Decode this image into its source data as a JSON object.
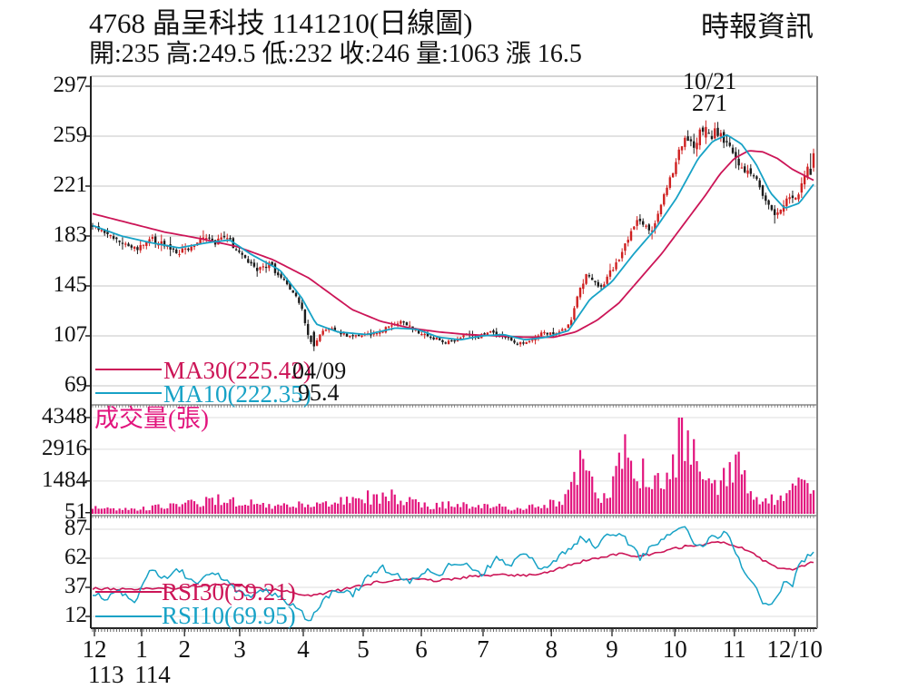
{
  "header": {
    "title": "4768  晶呈科技 1141210(日線圖)",
    "provider": "時報資訊",
    "quote_line": "開:235 高:249.5 低:232 收:246 量:1063 漲 16.5",
    "quote": {
      "open": 235,
      "high": 249.5,
      "low": 232,
      "close": 246,
      "volume": 1063,
      "change": 16.5
    }
  },
  "colors": {
    "up_candle": "#cf2020",
    "down_candle": "#1c1c1c",
    "ma30": "#cc1557",
    "ma10": "#17a2c6",
    "volume_bar": "#e2147d",
    "rsi30": "#cc1557",
    "rsi10": "#17a2c6",
    "grid": "#c6c6c6",
    "grid_faint": "#dedede",
    "frame": "#8a8a8a",
    "axis": "#222222",
    "text": "#111111"
  },
  "chart_data": {
    "type": "candlestick",
    "title": "4768 晶呈科技 1141210(日線圖)",
    "x_axis": {
      "num_days": 242,
      "months": [
        {
          "label": "12",
          "t": 0.005
        },
        {
          "label": "1",
          "t": 0.07
        },
        {
          "label": "2",
          "t": 0.129
        },
        {
          "label": "3",
          "t": 0.205
        },
        {
          "label": "4",
          "t": 0.2925
        },
        {
          "label": "5",
          "t": 0.375
        },
        {
          "label": "6",
          "t": 0.455
        },
        {
          "label": "7",
          "t": 0.54
        },
        {
          "label": "8",
          "t": 0.634
        },
        {
          "label": "9",
          "t": 0.7175
        },
        {
          "label": "10",
          "t": 0.804
        },
        {
          "label": "11",
          "t": 0.886
        },
        {
          "label": "12/10",
          "t": 0.969
        }
      ],
      "years": [
        {
          "label": "113",
          "t": 0.021
        },
        {
          "label": "114",
          "t": 0.085
        }
      ]
    },
    "price_panel": {
      "y_ticks": [
        297,
        259,
        221,
        183,
        145,
        107,
        69
      ],
      "legend": [
        {
          "display": "MA30(225.42)",
          "name": "MA30",
          "value": 225.42,
          "color_key": "ma30"
        },
        {
          "display": "MA10(222.35)",
          "name": "MA10",
          "value": 222.35,
          "color_key": "ma10"
        }
      ],
      "annotations": {
        "peak": {
          "date": "10/21",
          "price_display": "271",
          "price": 271,
          "t": 0.85
        },
        "low": {
          "date": "04/09",
          "price_display": "95.4",
          "price": 95.4,
          "t": 0.306
        }
      },
      "close_waypoints": [
        [
          0,
          190
        ],
        [
          0.02,
          185
        ],
        [
          0.04,
          178
        ],
        [
          0.06,
          173
        ],
        [
          0.08,
          181
        ],
        [
          0.1,
          176
        ],
        [
          0.12,
          171
        ],
        [
          0.14,
          176
        ],
        [
          0.155,
          181
        ],
        [
          0.17,
          178
        ],
        [
          0.185,
          183
        ],
        [
          0.2,
          172
        ],
        [
          0.215,
          165
        ],
        [
          0.23,
          157
        ],
        [
          0.245,
          162
        ],
        [
          0.26,
          152
        ],
        [
          0.275,
          143
        ],
        [
          0.29,
          128
        ],
        [
          0.3,
          106
        ],
        [
          0.306,
          99
        ],
        [
          0.315,
          109
        ],
        [
          0.33,
          113
        ],
        [
          0.345,
          109
        ],
        [
          0.36,
          106
        ],
        [
          0.375,
          109
        ],
        [
          0.39,
          108
        ],
        [
          0.405,
          112
        ],
        [
          0.42,
          117
        ],
        [
          0.43,
          119
        ],
        [
          0.445,
          112
        ],
        [
          0.46,
          108
        ],
        [
          0.475,
          105
        ],
        [
          0.49,
          102
        ],
        [
          0.505,
          104
        ],
        [
          0.52,
          109
        ],
        [
          0.535,
          106
        ],
        [
          0.55,
          110
        ],
        [
          0.565,
          108
        ],
        [
          0.58,
          103
        ],
        [
          0.595,
          101
        ],
        [
          0.61,
          105
        ],
        [
          0.625,
          109
        ],
        [
          0.64,
          108
        ],
        [
          0.655,
          113
        ],
        [
          0.665,
          121
        ],
        [
          0.675,
          141
        ],
        [
          0.685,
          153
        ],
        [
          0.695,
          147
        ],
        [
          0.705,
          143
        ],
        [
          0.715,
          153
        ],
        [
          0.725,
          161
        ],
        [
          0.735,
          172
        ],
        [
          0.745,
          183
        ],
        [
          0.755,
          197
        ],
        [
          0.765,
          191
        ],
        [
          0.775,
          186
        ],
        [
          0.785,
          201
        ],
        [
          0.795,
          216
        ],
        [
          0.805,
          233
        ],
        [
          0.815,
          249
        ],
        [
          0.825,
          259
        ],
        [
          0.835,
          252
        ],
        [
          0.845,
          265
        ],
        [
          0.855,
          258
        ],
        [
          0.865,
          263
        ],
        [
          0.875,
          256
        ],
        [
          0.885,
          249
        ],
        [
          0.895,
          241
        ],
        [
          0.905,
          229
        ],
        [
          0.915,
          233
        ],
        [
          0.925,
          221
        ],
        [
          0.935,
          207
        ],
        [
          0.945,
          198
        ],
        [
          0.955,
          206
        ],
        [
          0.965,
          213
        ],
        [
          0.975,
          210
        ],
        [
          0.985,
          225
        ],
        [
          0.995,
          240
        ],
        [
          1,
          246
        ]
      ],
      "ma30_waypoints": [
        [
          0,
          200
        ],
        [
          0.05,
          193
        ],
        [
          0.1,
          186
        ],
        [
          0.15,
          181
        ],
        [
          0.2,
          175
        ],
        [
          0.25,
          165
        ],
        [
          0.3,
          151
        ],
        [
          0.33,
          139
        ],
        [
          0.36,
          127
        ],
        [
          0.4,
          118
        ],
        [
          0.44,
          113
        ],
        [
          0.48,
          110
        ],
        [
          0.52,
          108
        ],
        [
          0.56,
          107
        ],
        [
          0.6,
          106
        ],
        [
          0.64,
          106
        ],
        [
          0.67,
          110
        ],
        [
          0.7,
          119
        ],
        [
          0.73,
          132
        ],
        [
          0.76,
          151
        ],
        [
          0.79,
          170
        ],
        [
          0.82,
          192
        ],
        [
          0.85,
          214
        ],
        [
          0.87,
          230
        ],
        [
          0.89,
          242
        ],
        [
          0.91,
          248
        ],
        [
          0.93,
          247
        ],
        [
          0.95,
          242
        ],
        [
          0.97,
          234
        ],
        [
          1,
          225.42
        ]
      ],
      "ma10_waypoints": [
        [
          0,
          191
        ],
        [
          0.04,
          183
        ],
        [
          0.08,
          178
        ],
        [
          0.12,
          174
        ],
        [
          0.16,
          178
        ],
        [
          0.19,
          180
        ],
        [
          0.22,
          169
        ],
        [
          0.26,
          157
        ],
        [
          0.29,
          136
        ],
        [
          0.31,
          116
        ],
        [
          0.34,
          110
        ],
        [
          0.38,
          108
        ],
        [
          0.42,
          113
        ],
        [
          0.45,
          112
        ],
        [
          0.48,
          106
        ],
        [
          0.51,
          104
        ],
        [
          0.54,
          107
        ],
        [
          0.57,
          108
        ],
        [
          0.6,
          104
        ],
        [
          0.63,
          106
        ],
        [
          0.66,
          111
        ],
        [
          0.69,
          135
        ],
        [
          0.72,
          148
        ],
        [
          0.75,
          169
        ],
        [
          0.78,
          188
        ],
        [
          0.81,
          212
        ],
        [
          0.84,
          242
        ],
        [
          0.86,
          255
        ],
        [
          0.88,
          260
        ],
        [
          0.9,
          253
        ],
        [
          0.92,
          238
        ],
        [
          0.94,
          216
        ],
        [
          0.96,
          204
        ],
        [
          0.98,
          208
        ],
        [
          1,
          222.35
        ]
      ]
    },
    "volume_panel": {
      "label": "成交量(張)",
      "y_ticks": [
        4348,
        2916,
        1484,
        51
      ],
      "max": 4348,
      "last": 1063,
      "spike": {
        "t": 0.815,
        "value": 4348
      },
      "waypoints": [
        [
          0,
          260
        ],
        [
          0.03,
          180
        ],
        [
          0.06,
          220
        ],
        [
          0.09,
          300
        ],
        [
          0.12,
          380
        ],
        [
          0.15,
          560
        ],
        [
          0.17,
          680
        ],
        [
          0.19,
          520
        ],
        [
          0.21,
          620
        ],
        [
          0.24,
          330
        ],
        [
          0.27,
          360
        ],
        [
          0.3,
          420
        ],
        [
          0.33,
          480
        ],
        [
          0.36,
          620
        ],
        [
          0.39,
          780
        ],
        [
          0.42,
          820
        ],
        [
          0.44,
          520
        ],
        [
          0.47,
          360
        ],
        [
          0.5,
          420
        ],
        [
          0.53,
          310
        ],
        [
          0.56,
          340
        ],
        [
          0.58,
          240
        ],
        [
          0.6,
          300
        ],
        [
          0.62,
          340
        ],
        [
          0.64,
          480
        ],
        [
          0.66,
          780
        ],
        [
          0.675,
          2300
        ],
        [
          0.69,
          1400
        ],
        [
          0.7,
          760
        ],
        [
          0.72,
          980
        ],
        [
          0.735,
          2850
        ],
        [
          0.75,
          2500
        ],
        [
          0.765,
          1750
        ],
        [
          0.78,
          1250
        ],
        [
          0.795,
          1450
        ],
        [
          0.81,
          2600
        ],
        [
          0.815,
          4348
        ],
        [
          0.83,
          2900
        ],
        [
          0.845,
          1550
        ],
        [
          0.86,
          950
        ],
        [
          0.875,
          1500
        ],
        [
          0.89,
          2400
        ],
        [
          0.905,
          1400
        ],
        [
          0.92,
          800
        ],
        [
          0.94,
          580
        ],
        [
          0.96,
          900
        ],
        [
          0.98,
          1150
        ],
        [
          1,
          1063
        ]
      ]
    },
    "rsi_panel": {
      "y_ticks": [
        87,
        62,
        37,
        12
      ],
      "legend": [
        {
          "display": "RSI30(59.21)",
          "name": "RSI30",
          "value": 59.21,
          "color_key": "rsi30"
        },
        {
          "display": "RSI10(69.95)",
          "name": "RSI10",
          "value": 69.95,
          "color_key": "rsi10"
        }
      ],
      "rsi30_waypoints": [
        [
          0,
          36
        ],
        [
          0.05,
          35
        ],
        [
          0.1,
          36
        ],
        [
          0.15,
          38
        ],
        [
          0.19,
          40
        ],
        [
          0.22,
          37
        ],
        [
          0.26,
          34
        ],
        [
          0.3,
          30
        ],
        [
          0.33,
          33
        ],
        [
          0.37,
          38
        ],
        [
          0.4,
          42
        ],
        [
          0.44,
          44
        ],
        [
          0.48,
          43
        ],
        [
          0.52,
          46
        ],
        [
          0.56,
          48
        ],
        [
          0.6,
          47
        ],
        [
          0.63,
          50
        ],
        [
          0.67,
          58
        ],
        [
          0.7,
          62
        ],
        [
          0.73,
          66
        ],
        [
          0.76,
          64
        ],
        [
          0.79,
          68
        ],
        [
          0.82,
          72
        ],
        [
          0.85,
          74
        ],
        [
          0.87,
          76
        ],
        [
          0.89,
          73
        ],
        [
          0.91,
          68
        ],
        [
          0.93,
          60
        ],
        [
          0.95,
          54
        ],
        [
          0.97,
          52
        ],
        [
          0.99,
          57
        ],
        [
          1,
          59.21
        ]
      ],
      "rsi10_waypoints": [
        [
          0,
          32
        ],
        [
          0.02,
          28
        ],
        [
          0.04,
          33
        ],
        [
          0.06,
          25
        ],
        [
          0.08,
          55
        ],
        [
          0.1,
          45
        ],
        [
          0.12,
          52
        ],
        [
          0.14,
          40
        ],
        [
          0.16,
          48
        ],
        [
          0.18,
          46
        ],
        [
          0.2,
          34
        ],
        [
          0.22,
          30
        ],
        [
          0.24,
          36
        ],
        [
          0.26,
          28
        ],
        [
          0.28,
          22
        ],
        [
          0.3,
          8
        ],
        [
          0.32,
          25
        ],
        [
          0.34,
          35
        ],
        [
          0.36,
          30
        ],
        [
          0.38,
          45
        ],
        [
          0.4,
          55
        ],
        [
          0.42,
          48
        ],
        [
          0.44,
          40
        ],
        [
          0.46,
          52
        ],
        [
          0.48,
          45
        ],
        [
          0.5,
          60
        ],
        [
          0.52,
          55
        ],
        [
          0.54,
          48
        ],
        [
          0.56,
          62
        ],
        [
          0.58,
          55
        ],
        [
          0.6,
          68
        ],
        [
          0.62,
          52
        ],
        [
          0.64,
          60
        ],
        [
          0.66,
          70
        ],
        [
          0.68,
          80
        ],
        [
          0.7,
          72
        ],
        [
          0.72,
          85
        ],
        [
          0.74,
          78
        ],
        [
          0.76,
          62
        ],
        [
          0.78,
          75
        ],
        [
          0.8,
          82
        ],
        [
          0.82,
          88
        ],
        [
          0.84,
          72
        ],
        [
          0.86,
          80
        ],
        [
          0.88,
          84
        ],
        [
          0.9,
          55
        ],
        [
          0.92,
          35
        ],
        [
          0.93,
          25
        ],
        [
          0.94,
          20
        ],
        [
          0.95,
          30
        ],
        [
          0.96,
          42
        ],
        [
          0.97,
          38
        ],
        [
          0.98,
          55
        ],
        [
          0.99,
          62
        ],
        [
          1,
          70
        ]
      ]
    }
  }
}
